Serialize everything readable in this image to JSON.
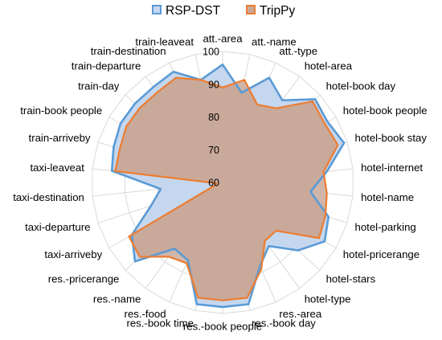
{
  "colors": {
    "rsp_stroke": "#5b9bd5",
    "rsp_fill": "#c5d7ef",
    "trippy_stroke": "#ed7d31",
    "overlap_fill": "#c9a99a",
    "grid": "#d9d9d9"
  },
  "chart_data": {
    "type": "radar",
    "title": "",
    "range": [
      60,
      100
    ],
    "ticks": [
      60,
      70,
      80,
      90,
      100
    ],
    "grid": true,
    "legend_position": "top",
    "categories": [
      "att.-area",
      "att.-name",
      "att.-type",
      "hotel-area",
      "hotel-book day",
      "hotel-book people",
      "hotel-book stay",
      "hotel-internet",
      "hotel-name",
      "hotel-parking",
      "hotel-pricerange",
      "hotel-stars",
      "hotel-type",
      "res.-area",
      "res.-book day",
      "res.-book people",
      "res.-book time",
      "res.-food",
      "res.-name",
      "res.-pricerange",
      "taxi-arriveby",
      "taxi-departure",
      "taxi-destination",
      "taxi-leaveat",
      "train-arriveby",
      "train-book people",
      "train-day",
      "train-departure",
      "train-destination",
      "train-leaveat"
    ],
    "series": [
      {
        "name": "RSP-DST",
        "values": [
          96,
          88,
          95,
          91,
          98,
          97,
          99,
          92,
          87,
          94,
          96,
          91,
          84,
          88,
          98,
          98,
          98,
          86,
          85,
          96,
          92,
          83,
          79,
          94,
          95,
          96,
          96,
          96,
          97,
          92
        ]
      },
      {
        "name": "TripPy",
        "values": [
          89,
          92,
          86,
          88,
          97,
          96,
          97,
          91,
          92,
          93,
          94,
          82,
          82,
          89,
          96,
          96,
          96,
          87,
          88,
          94,
          93,
          62,
          62,
          93,
          93,
          94,
          94,
          94,
          95,
          92
        ]
      }
    ]
  }
}
